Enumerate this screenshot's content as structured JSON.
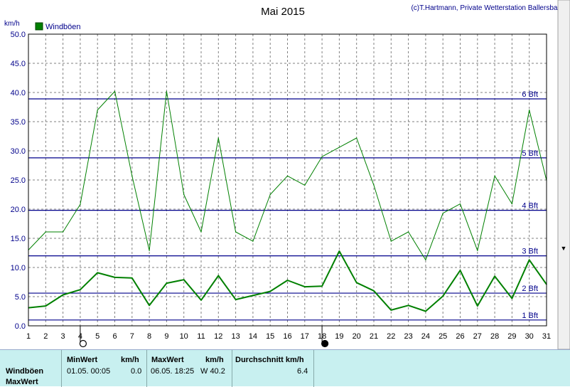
{
  "header": {
    "title": "Mai 2015",
    "credit": "(c)T.Hartmann, Private Wetterstation Ballersbach",
    "unit_label": "km/h"
  },
  "chart_data": {
    "type": "line",
    "title": "Mai 2015",
    "ylabel": "km/h",
    "ylim": [
      0,
      50
    ],
    "xlim": [
      1,
      31
    ],
    "grid": true,
    "legend_position": "top-left",
    "x": [
      1,
      2,
      3,
      4,
      5,
      6,
      7,
      8,
      9,
      10,
      11,
      12,
      13,
      14,
      15,
      16,
      17,
      18,
      19,
      20,
      21,
      22,
      23,
      24,
      25,
      26,
      27,
      28,
      29,
      30,
      31
    ],
    "x_tick_labels": [
      "1",
      "2",
      "3",
      "4",
      "5",
      "6",
      "7",
      "8",
      "9",
      "10",
      "11",
      "12",
      "13",
      "14",
      "15",
      "16",
      "17",
      "18",
      "19",
      "20",
      "21",
      "22",
      "23",
      "24",
      "25",
      "26",
      "27",
      "28",
      "29",
      "30",
      "31"
    ],
    "y_tick_labels": [
      "0.0",
      "5.0",
      "10.0",
      "15.0",
      "20.0",
      "25.0",
      "30.0",
      "35.0",
      "40.0",
      "45.0",
      "50.0"
    ],
    "series": [
      {
        "name": "Windböen",
        "color": "#008000",
        "values": [
          13.0,
          16.1,
          16.1,
          20.8,
          37.0,
          40.2,
          25.7,
          12.9,
          40.2,
          22.5,
          16.1,
          32.2,
          16.1,
          14.5,
          22.5,
          25.7,
          24.1,
          29.0,
          30.6,
          32.2,
          24.1,
          14.5,
          16.1,
          11.3,
          19.3,
          20.9,
          12.9,
          25.7,
          20.9,
          37.0,
          24.9
        ]
      },
      {
        "values": [
          3.1,
          3.4,
          5.3,
          6.2,
          9.1,
          8.3,
          8.2,
          3.5,
          7.3,
          7.9,
          4.4,
          8.6,
          4.5,
          5.2,
          5.9,
          7.8,
          6.7,
          6.8,
          12.8,
          7.4,
          6.0,
          2.7,
          3.5,
          2.5,
          5.1,
          9.5,
          3.4,
          8.5,
          4.7,
          11.3,
          7.1
        ]
      }
    ],
    "reference_lines": [
      {
        "label": "1 Bft",
        "value": 1.0
      },
      {
        "label": "2 Bft",
        "value": 5.6
      },
      {
        "label": "3 Bft",
        "value": 12.0
      },
      {
        "label": "4 Bft",
        "value": 19.8
      },
      {
        "label": "5 Bft",
        "value": 28.8
      },
      {
        "label": "6 Bft",
        "value": 38.9
      }
    ],
    "markers": [
      {
        "day": 4,
        "symbol": "open-circle"
      },
      {
        "day": 18,
        "symbol": "filled-circle"
      }
    ]
  },
  "stats": {
    "row_label_1": "Windböen",
    "row_label_2": "MaxWert",
    "min_header": "MinWert",
    "min_unit": "km/h",
    "min_time": "01.05.  00:05",
    "min_value": "0.0",
    "max_header": "MaxWert",
    "max_unit": "km/h",
    "max_time": "06.05.  18:25",
    "max_value": "W 40.2",
    "avg_header": "Durchschnitt km/h",
    "avg_value": "6.4"
  }
}
